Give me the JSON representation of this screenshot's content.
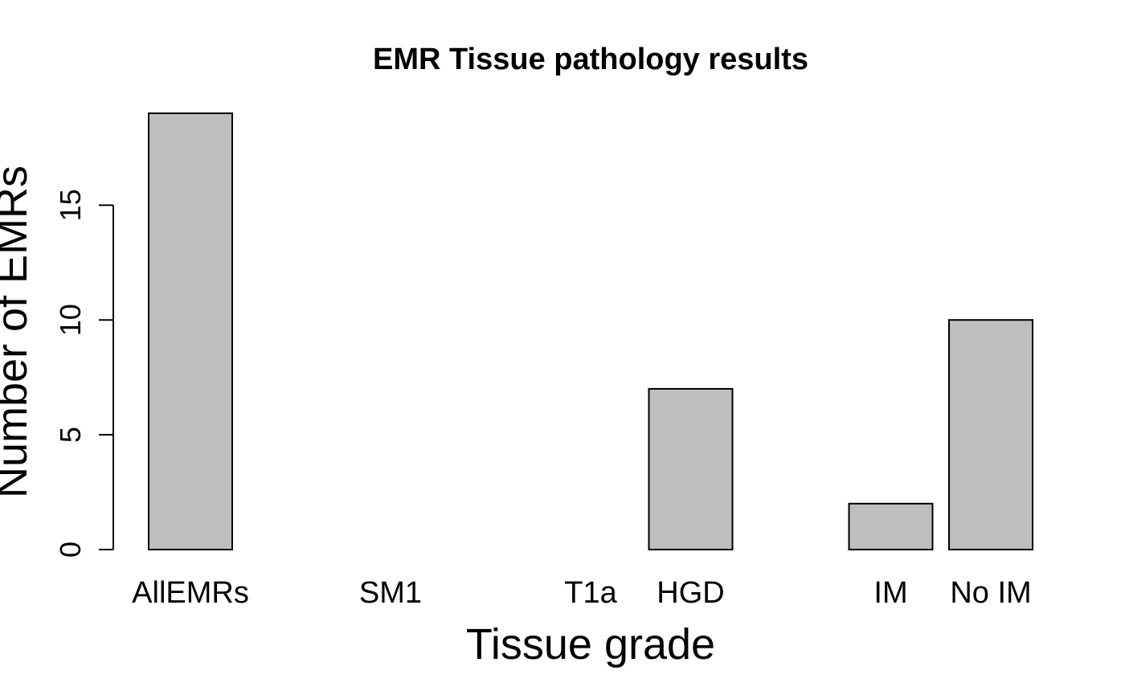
{
  "chart_data": {
    "type": "bar",
    "title": "EMR Tissue pathology results",
    "xlabel": "Tissue grade",
    "ylabel": "Number of EMRs",
    "categories": [
      "AllEMRs",
      "",
      "SM1",
      "",
      "T1a",
      "HGD",
      "",
      "IM",
      "No IM"
    ],
    "values": [
      19,
      0,
      0,
      0,
      0,
      7,
      0,
      2,
      10
    ],
    "yticks": [
      0,
      5,
      10,
      15
    ],
    "ylim": [
      0,
      19
    ],
    "bar_color": "#bebebe",
    "grid": false,
    "legend": "none"
  }
}
